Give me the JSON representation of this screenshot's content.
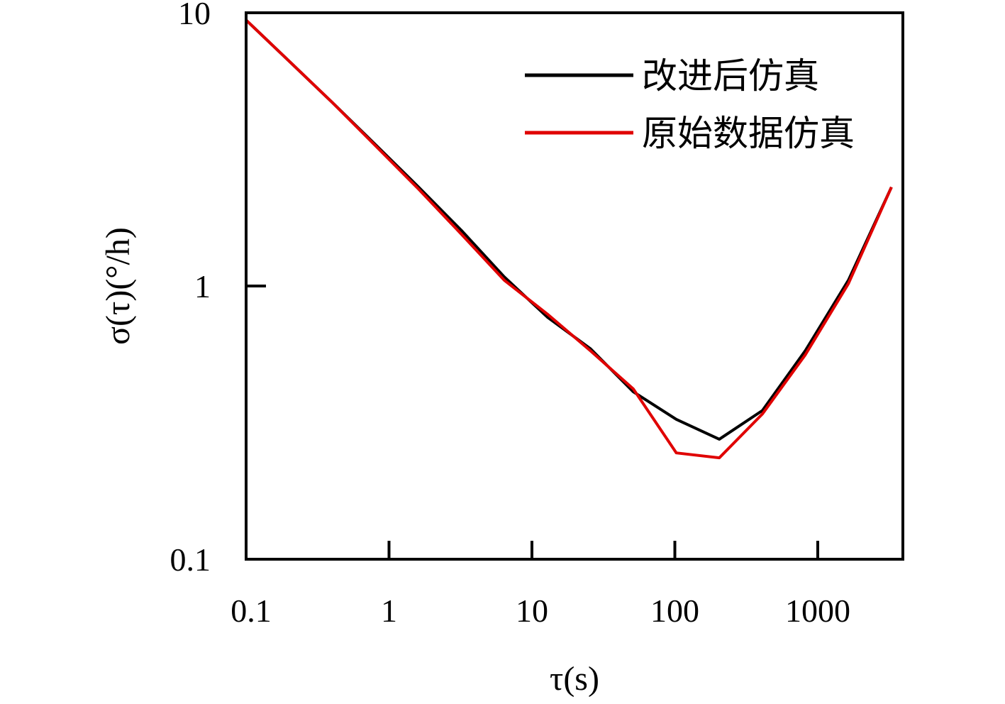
{
  "chart_data": {
    "type": "line",
    "title": "",
    "xlabel": "τ(s)",
    "ylabel": "σ(τ)(°/h)",
    "xscale": "log",
    "yscale": "log",
    "xlim": [
      0.1,
      3500
    ],
    "ylim": [
      0.1,
      10
    ],
    "x_ticks": [
      0.1,
      1,
      10,
      100,
      1000
    ],
    "x_tick_labels": [
      "0.1",
      "1",
      "10",
      "100",
      "1000"
    ],
    "y_ticks": [
      0.1,
      1,
      10
    ],
    "y_tick_labels": [
      "0.1",
      "1",
      "10"
    ],
    "grid": false,
    "legend_position": "top-right",
    "series": [
      {
        "name": "改进后仿真",
        "color": "#000000",
        "x": [
          0.1,
          0.2,
          0.4,
          0.8,
          1.6,
          3.2,
          6.4,
          12.8,
          25.6,
          51.2,
          102.4,
          204.8,
          409.6,
          819.2,
          1638.4,
          3276.8
        ],
        "y": [
          9.4,
          6.65,
          4.7,
          3.3,
          2.31,
          1.6,
          1.08,
          0.77,
          0.59,
          0.41,
          0.325,
          0.275,
          0.35,
          0.58,
          1.05,
          2.3
        ]
      },
      {
        "name": "原始数据仿真",
        "color": "#e00000",
        "x": [
          0.1,
          0.2,
          0.4,
          0.8,
          1.6,
          3.2,
          6.4,
          12.8,
          25.6,
          51.2,
          102.4,
          204.8,
          409.6,
          819.2,
          1638.4,
          3276.8
        ],
        "y": [
          9.4,
          6.65,
          4.7,
          3.27,
          2.27,
          1.55,
          1.05,
          0.79,
          0.58,
          0.42,
          0.245,
          0.235,
          0.34,
          0.56,
          1.02,
          2.3
        ]
      }
    ]
  }
}
